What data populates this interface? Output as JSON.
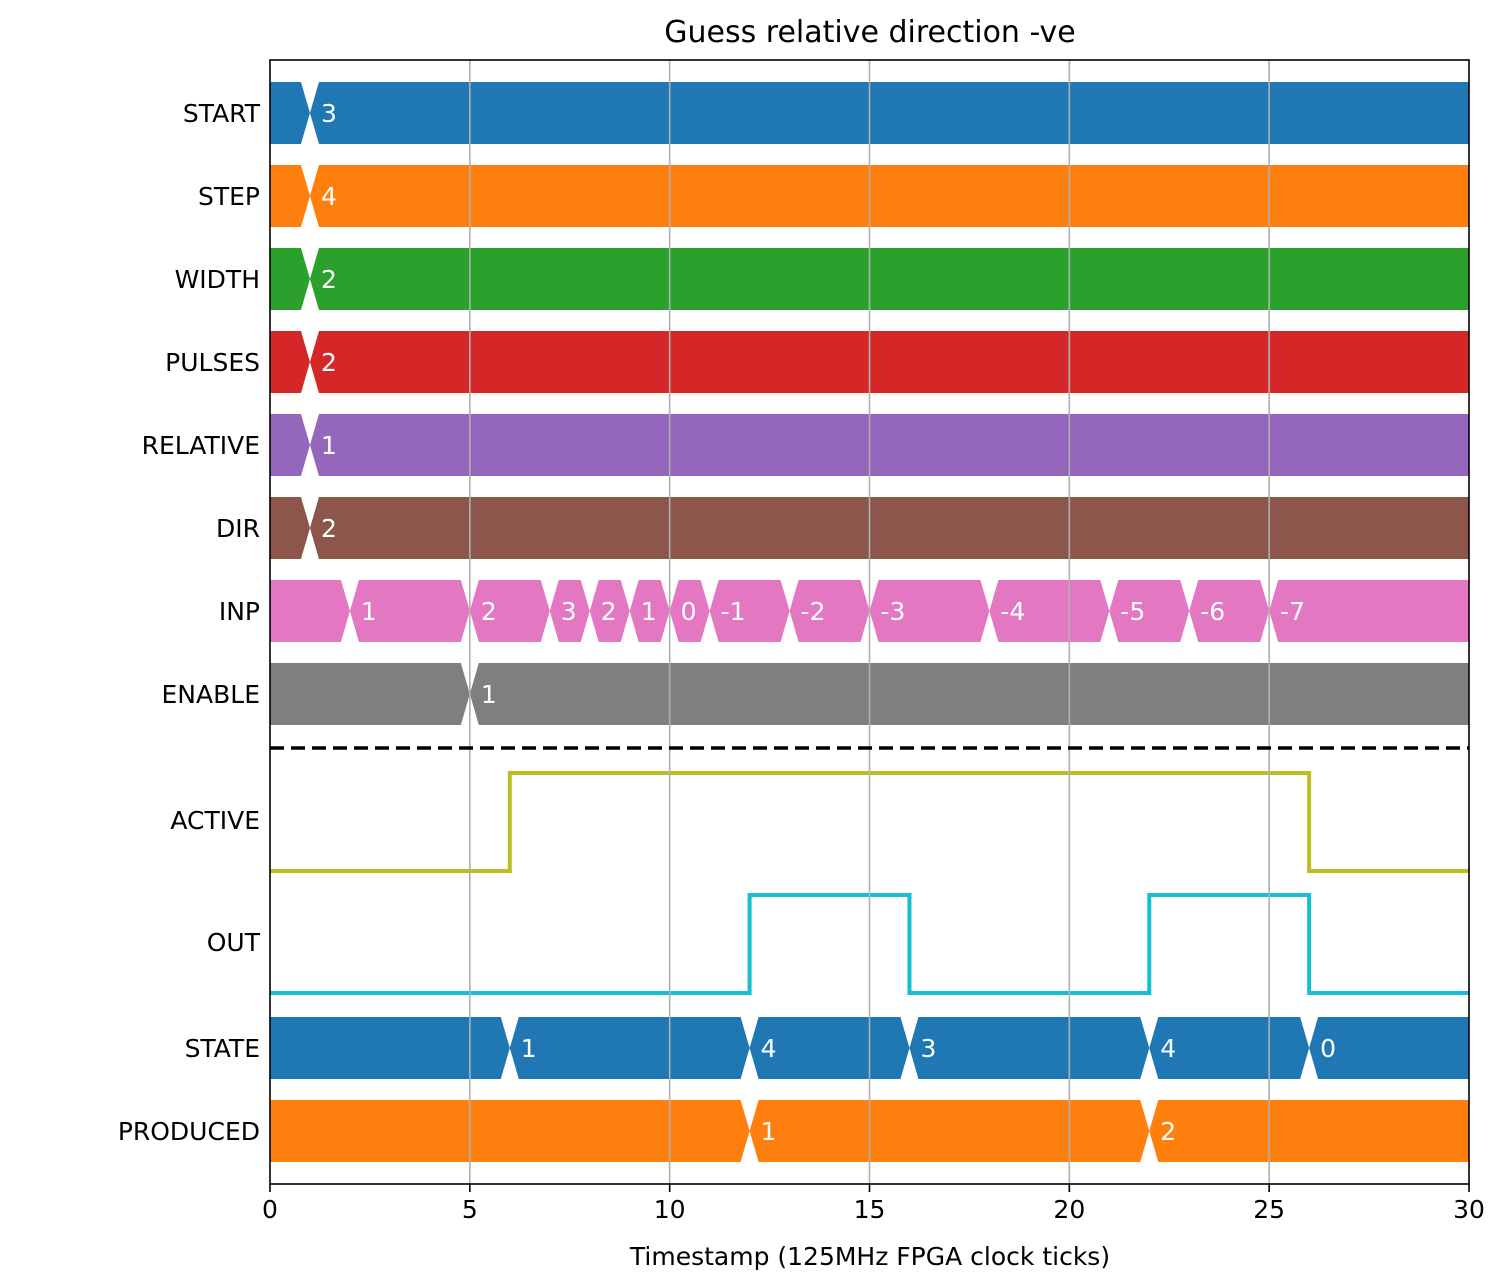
{
  "chart_data": {
    "type": "timing-diagram",
    "title": "Guess relative direction -ve",
    "xlabel": "Timestamp (125MHz FPGA clock ticks)",
    "xlim": [
      0,
      30
    ],
    "xticks": [
      0,
      5,
      10,
      15,
      20,
      25,
      30
    ],
    "grid": "vertical",
    "separator": "dashed line between inputs and outputs",
    "rows": [
      {
        "name": "START",
        "kind": "bus",
        "color": "#1f77b4",
        "changes": [
          {
            "t": 1,
            "value": "3"
          }
        ]
      },
      {
        "name": "STEP",
        "kind": "bus",
        "color": "#ff7f0e",
        "changes": [
          {
            "t": 1,
            "value": "4"
          }
        ]
      },
      {
        "name": "WIDTH",
        "kind": "bus",
        "color": "#2ca02c",
        "changes": [
          {
            "t": 1,
            "value": "2"
          }
        ]
      },
      {
        "name": "PULSES",
        "kind": "bus",
        "color": "#d62728",
        "changes": [
          {
            "t": 1,
            "value": "2"
          }
        ]
      },
      {
        "name": "RELATIVE",
        "kind": "bus",
        "color": "#9467bd",
        "changes": [
          {
            "t": 1,
            "value": "1"
          }
        ]
      },
      {
        "name": "DIR",
        "kind": "bus",
        "color": "#8c564b",
        "changes": [
          {
            "t": 1,
            "value": "2"
          }
        ]
      },
      {
        "name": "INP",
        "kind": "bus",
        "color": "#e377c2",
        "changes": [
          {
            "t": 2,
            "value": "1"
          },
          {
            "t": 5,
            "value": "2"
          },
          {
            "t": 7,
            "value": "3"
          },
          {
            "t": 8,
            "value": "2"
          },
          {
            "t": 9,
            "value": "1"
          },
          {
            "t": 10,
            "value": "0"
          },
          {
            "t": 11,
            "value": "-1"
          },
          {
            "t": 13,
            "value": "-2"
          },
          {
            "t": 15,
            "value": "-3"
          },
          {
            "t": 18,
            "value": "-4"
          },
          {
            "t": 21,
            "value": "-5"
          },
          {
            "t": 23,
            "value": "-6"
          },
          {
            "t": 25,
            "value": "-7"
          }
        ]
      },
      {
        "name": "ENABLE",
        "kind": "bus",
        "color": "#7f7f7f",
        "changes": [
          {
            "t": 5,
            "value": "1"
          }
        ]
      },
      {
        "name": "ACTIVE",
        "kind": "bit",
        "color": "#bcbd22",
        "edges": [
          [
            0,
            0
          ],
          [
            6,
            1
          ],
          [
            26,
            0
          ]
        ]
      },
      {
        "name": "OUT",
        "kind": "bit",
        "color": "#17becf",
        "edges": [
          [
            0,
            0
          ],
          [
            12,
            1
          ],
          [
            16,
            0
          ],
          [
            22,
            1
          ],
          [
            26,
            0
          ]
        ]
      },
      {
        "name": "STATE",
        "kind": "bus",
        "color": "#1f77b4",
        "changes": [
          {
            "t": 6,
            "value": "1"
          },
          {
            "t": 12,
            "value": "4"
          },
          {
            "t": 16,
            "value": "3"
          },
          {
            "t": 22,
            "value": "4"
          },
          {
            "t": 26,
            "value": "0"
          }
        ]
      },
      {
        "name": "PRODUCED",
        "kind": "bus",
        "color": "#ff7f0e",
        "changes": [
          {
            "t": 12,
            "value": "1"
          },
          {
            "t": 22,
            "value": "2"
          }
        ]
      }
    ]
  }
}
